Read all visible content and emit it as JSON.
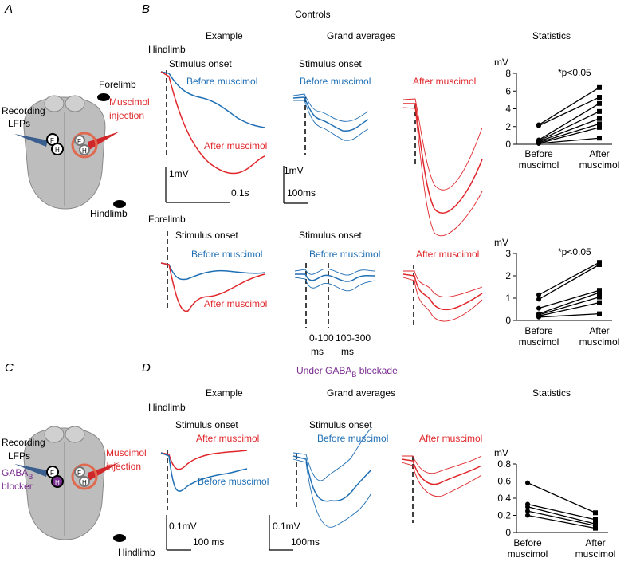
{
  "panel_letters": {
    "a": "A",
    "b": "B",
    "c": "C",
    "d": "D"
  },
  "controls": {
    "title": "Controls",
    "col_example": "Example",
    "col_grand": "Grand averages",
    "col_stats": "Statistics",
    "hindlimb_row": {
      "label": "Hindlimb",
      "onset_example": "Stimulus onset",
      "onset_grand": "Stimulus onset",
      "before_example": "Before muscimol",
      "after_example": "After muscimol",
      "before_grand": "Before muscimol",
      "after_grand": "After muscimol",
      "scale_v_example": "1mV",
      "scale_t_example": "0.1s",
      "scale_v_grand": "1mV",
      "scale_t_grand": "100ms"
    },
    "forelimb_row": {
      "label": "Forelimb",
      "onset_example": "Stimulus onset",
      "onset_grand": "Stimulus onset",
      "before_example": "Before muscimol",
      "after_example": "After muscimol",
      "before_grand": "Before muscimol",
      "after_grand": "After muscimol",
      "window1": "0-100",
      "window1_unit": "ms",
      "window2": "100-300",
      "window2_unit": "ms"
    },
    "brain": {
      "forelimb": "Forelimb",
      "muscimol": "Muscimol",
      "injection": "injection",
      "recording": "Recording",
      "lfps": "LFPs",
      "hindlimb": "Hindlimb",
      "f_left": "F",
      "h_left": "H",
      "f_right": "F",
      "h_right": "H"
    }
  },
  "gaba": {
    "title": {
      "pre": "Under GABA",
      "sub": "B",
      "post": " blockade"
    },
    "col_example": "Example",
    "col_grand": "Grand averages",
    "col_stats": "Statistics",
    "row_label": "Hindlimb",
    "onset_example": "Stimulus onset",
    "onset_grand": "Stimulus onset",
    "after_example": "After muscimol",
    "before_example": "Before muscimol",
    "before_grand": "Before muscimol",
    "after_grand": "After muscimol",
    "scale_v_example": "0.1mV",
    "scale_t_example": "100 ms",
    "scale_v_grand": "0.1mV",
    "scale_t_grand": "100ms",
    "brain": {
      "recording": "Recording",
      "lfps": "LFPs",
      "gaba_pre": "GABA",
      "gaba_sub": "B",
      "blocker": "blocker",
      "muscimol": "Muscimol",
      "injection": "injection",
      "hindlimb": "Hindlimb",
      "f_left": "F",
      "h_left": "H",
      "f_right": "F",
      "h_right": "H"
    }
  },
  "chart_data": [
    {
      "type": "paired",
      "y_label": "mV",
      "annotation": "*p<0.05",
      "categories": [
        "Before muscimol",
        "After muscimol"
      ],
      "color": "#000000",
      "ylim": [
        0,
        8
      ],
      "yticks": [
        0,
        2,
        4,
        6,
        8
      ],
      "series": [
        {
          "values": [
            2.2,
            6.4
          ]
        },
        {
          "values": [
            2.1,
            5.3
          ]
        },
        {
          "values": [
            0.5,
            4.6
          ]
        },
        {
          "values": [
            0.4,
            3.7
          ]
        },
        {
          "values": [
            0.3,
            2.9
          ]
        },
        {
          "values": [
            0.2,
            2.3
          ]
        },
        {
          "values": [
            0.1,
            1.9
          ]
        },
        {
          "values": [
            0.1,
            0.7
          ]
        }
      ]
    },
    {
      "type": "paired",
      "y_label": "mV",
      "annotation": "*p<0.05",
      "categories": [
        "Before muscimol",
        "After muscimol"
      ],
      "color": "#000000",
      "ylim": [
        0,
        3
      ],
      "yticks": [
        0,
        1,
        2,
        3
      ],
      "series": [
        {
          "values": [
            1.15,
            2.6
          ]
        },
        {
          "values": [
            0.95,
            2.5
          ]
        },
        {
          "values": [
            0.55,
            1.35
          ]
        },
        {
          "values": [
            0.3,
            1.25
          ]
        },
        {
          "values": [
            0.25,
            1.05
          ]
        },
        {
          "values": [
            0.2,
            0.8
          ]
        },
        {
          "values": [
            0.15,
            0.3
          ]
        }
      ]
    },
    {
      "type": "paired",
      "y_label": "mV",
      "categories": [
        "Before muscimol",
        "After muscimol"
      ],
      "color": "#000000",
      "ylim": [
        0,
        0.8
      ],
      "yticks": [
        0,
        0.2,
        0.4,
        0.6,
        0.8
      ],
      "series": [
        {
          "values": [
            0.58,
            0.23
          ]
        },
        {
          "values": [
            0.33,
            0.15
          ]
        },
        {
          "values": [
            0.3,
            0.1
          ]
        },
        {
          "values": [
            0.25,
            0.08
          ]
        },
        {
          "values": [
            0.2,
            0.05
          ]
        }
      ]
    }
  ]
}
